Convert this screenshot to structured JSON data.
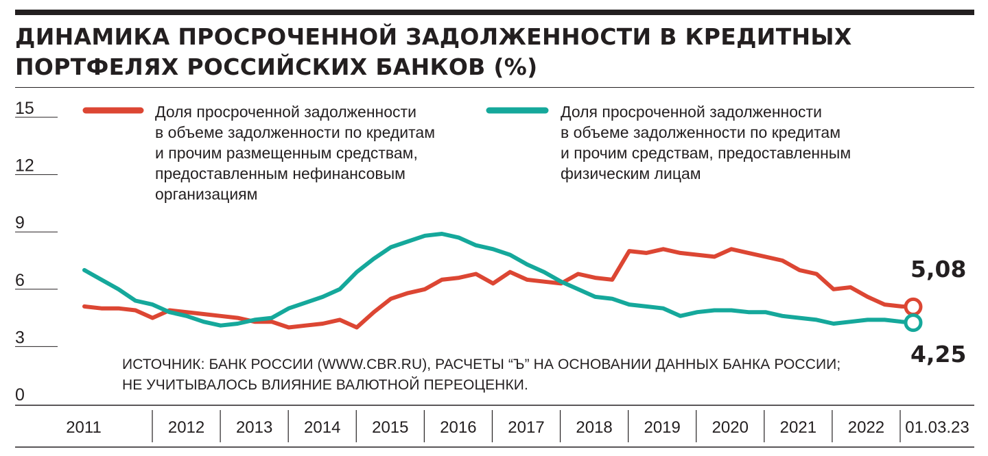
{
  "title_lines": [
    "ДИНАМИКА ПРОСРОЧЕННОЙ ЗАДОЛЖЕННОСТИ В КРЕДИТНЫХ",
    "ПОРТФЕЛЯХ РОССИЙСКИХ БАНКОВ (%)"
  ],
  "source_lines": [
    "ИСТОЧНИК: БАНК РОССИИ (WWW.CBR.RU), РАСЧЕТЫ “Ъ” НА ОСНОВАНИИ ДАННЫХ БАНКА РОССИИ;",
    "НЕ УЧИТЫВАЛОСЬ ВЛИЯНИЕ ВАЛЮТНОЙ ПЕРЕОЦЕНКИ."
  ],
  "colors": {
    "red": "#dc4633",
    "teal": "#15a89b",
    "ink": "#231f20"
  },
  "chart_data": {
    "type": "line",
    "title": "ДИНАМИКА ПРОСРОЧЕННОЙ ЗАДОЛЖЕННОСТИ В КРЕДИТНЫХ ПОРТФЕЛЯХ РОССИЙСКИХ БАНКОВ (%)",
    "ylim": [
      0,
      15
    ],
    "yticks": [
      "15",
      "12",
      "9",
      "6",
      "3",
      "0"
    ],
    "ytick_values": [
      15,
      12,
      9,
      6,
      3,
      0
    ],
    "x_categories": [
      "2011",
      "2012",
      "2013",
      "2014",
      "2015",
      "2016",
      "2017",
      "2018",
      "2019",
      "2020",
      "2021",
      "2022",
      "01.03.23"
    ],
    "xlim": [
      2011.0,
      2023.17
    ],
    "grid": false,
    "legend_position": "top",
    "series": [
      {
        "name": "Доля просроченной задолженности в объеме задолженности по кредитам и прочим размещенным средствам, предоставленным нефинансовым организациям",
        "label_lines": [
          "Доля просроченной задолженности",
          "в объеме задолженности по кредитам",
          "и прочим размещенным средствам,",
          "предоставленным нефинансовым",
          "организациям"
        ],
        "color": "#dc4633",
        "end_label": "5,08",
        "x": [
          2011.0,
          2011.25,
          2011.5,
          2011.75,
          2012.0,
          2012.25,
          2012.5,
          2012.75,
          2013.0,
          2013.25,
          2013.5,
          2013.75,
          2014.0,
          2014.25,
          2014.5,
          2014.75,
          2015.0,
          2015.25,
          2015.5,
          2015.75,
          2016.0,
          2016.25,
          2016.5,
          2016.75,
          2017.0,
          2017.25,
          2017.5,
          2017.75,
          2018.0,
          2018.25,
          2018.5,
          2018.75,
          2019.0,
          2019.25,
          2019.5,
          2019.75,
          2020.0,
          2020.25,
          2020.5,
          2020.75,
          2021.0,
          2021.25,
          2021.5,
          2021.75,
          2022.0,
          2022.25,
          2022.5,
          2022.75,
          2023.0,
          2023.17
        ],
        "values": [
          5.1,
          5.0,
          5.0,
          4.9,
          4.5,
          4.9,
          4.8,
          4.7,
          4.6,
          4.5,
          4.3,
          4.3,
          4.0,
          4.1,
          4.2,
          4.4,
          4.0,
          4.8,
          5.5,
          5.8,
          6.0,
          6.5,
          6.6,
          6.8,
          6.3,
          6.9,
          6.5,
          6.4,
          6.3,
          6.8,
          6.6,
          6.5,
          8.0,
          7.9,
          8.1,
          7.9,
          7.8,
          7.7,
          8.1,
          7.9,
          7.7,
          7.5,
          7.0,
          6.8,
          6.0,
          6.1,
          5.6,
          5.2,
          5.1,
          5.08
        ]
      },
      {
        "name": "Доля просроченной задолженности в объеме задолженности по кредитам и прочим средствам, предоставленным физическим лицам",
        "label_lines": [
          "Доля просроченной задолженности",
          "в объеме задолженности по кредитам",
          "и прочим средствам, предоставленным",
          "физическим лицам"
        ],
        "color": "#15a89b",
        "end_label": "4,25",
        "x": [
          2011.0,
          2011.25,
          2011.5,
          2011.75,
          2012.0,
          2012.25,
          2012.5,
          2012.75,
          2013.0,
          2013.25,
          2013.5,
          2013.75,
          2014.0,
          2014.25,
          2014.5,
          2014.75,
          2015.0,
          2015.25,
          2015.5,
          2015.75,
          2016.0,
          2016.25,
          2016.5,
          2016.75,
          2017.0,
          2017.25,
          2017.5,
          2017.75,
          2018.0,
          2018.25,
          2018.5,
          2018.75,
          2019.0,
          2019.25,
          2019.5,
          2019.75,
          2020.0,
          2020.25,
          2020.5,
          2020.75,
          2021.0,
          2021.25,
          2021.5,
          2021.75,
          2022.0,
          2022.25,
          2022.5,
          2022.75,
          2023.0,
          2023.17
        ],
        "values": [
          7.0,
          6.5,
          6.0,
          5.4,
          5.2,
          4.8,
          4.6,
          4.3,
          4.1,
          4.2,
          4.4,
          4.5,
          5.0,
          5.3,
          5.6,
          6.0,
          6.9,
          7.6,
          8.2,
          8.5,
          8.8,
          8.9,
          8.7,
          8.3,
          8.1,
          7.8,
          7.3,
          6.9,
          6.4,
          6.0,
          5.6,
          5.5,
          5.2,
          5.1,
          5.0,
          4.6,
          4.8,
          4.9,
          4.9,
          4.8,
          4.8,
          4.6,
          4.5,
          4.4,
          4.2,
          4.3,
          4.4,
          4.4,
          4.3,
          4.25
        ]
      }
    ]
  }
}
